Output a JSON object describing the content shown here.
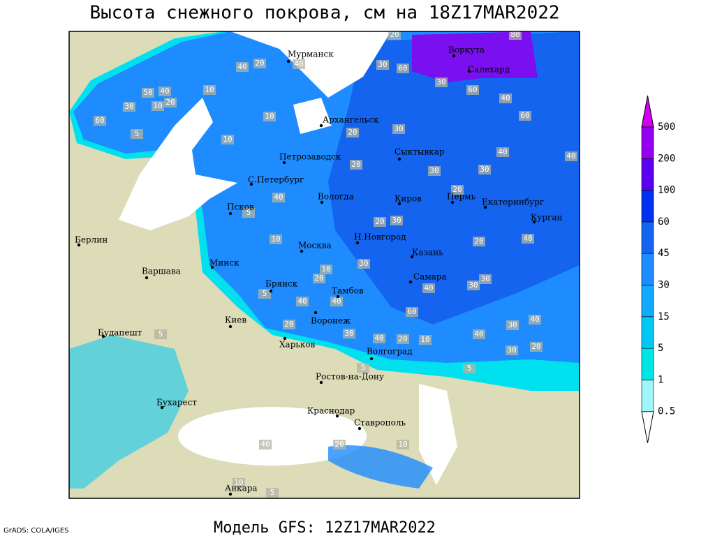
{
  "title": "Высота снежного покрова, см на 18Z17MAR2022",
  "footer": "Модель GFS: 12Z17MAR2022",
  "credit": "GrADS: COLA/IGES",
  "cities": [
    "Мурманск",
    "Воркута",
    "Салехард",
    "Архангельск",
    "Петрозаводск",
    "Сыктывкар",
    "С.Петербург",
    "Вологда",
    "Киров",
    "Пермь",
    "Екатеринбург",
    "Курган",
    "Псков",
    "Берлин",
    "Н.Новгород",
    "Москва",
    "Казань",
    "Минск",
    "Варшава",
    "Самара",
    "Брянск",
    "Тамбов",
    "Воронеж",
    "Киев",
    "Будапешт",
    "Харьков",
    "Волгоград",
    "Ростов-на-Дону",
    "Бухарест",
    "Краснодар",
    "Ставрополь",
    "Анкара"
  ],
  "contour_labels": [
    "20",
    "80",
    "40",
    "20",
    "40",
    "30",
    "60",
    "30",
    "60",
    "40",
    "60",
    "10",
    "50",
    "40",
    "20",
    "10",
    "30",
    "60",
    "5",
    "10",
    "10",
    "20",
    "30",
    "40",
    "40",
    "30",
    "20",
    "30",
    "20",
    "40",
    "5",
    "20",
    "30",
    "10",
    "20",
    "40",
    "10",
    "30",
    "20",
    "40",
    "30",
    "30",
    "5",
    "40",
    "40",
    "60",
    "30",
    "40",
    "20",
    "30",
    "40",
    "20",
    "10",
    "40",
    "30",
    "20",
    "5",
    "5",
    "5",
    "40",
    "20",
    "10",
    "10",
    "5"
  ],
  "legend": {
    "levels": [
      0.5,
      1,
      5,
      15,
      30,
      45,
      60,
      100,
      200,
      500
    ],
    "colors": [
      "#ffffff",
      "#a0f5fa",
      "#00e6e6",
      "#00c8f5",
      "#10aaff",
      "#1e8cff",
      "#1464f0",
      "#0030f0",
      "#5a00f0",
      "#9600f0",
      "#d200f0"
    ]
  }
}
